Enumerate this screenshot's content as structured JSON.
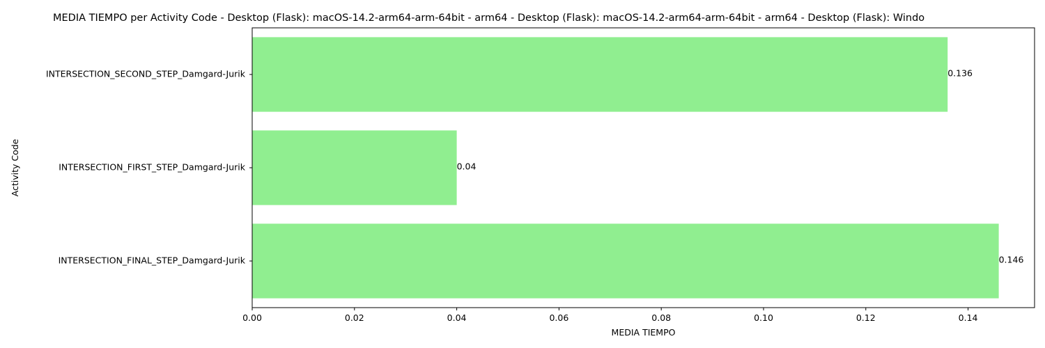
{
  "chart_data": {
    "type": "bar",
    "orientation": "horizontal",
    "title": "MEDIA TIEMPO per Activity Code - Desktop (Flask): macOS-14.2-arm64-arm-64bit - arm64 - Desktop (Flask): macOS-14.2-arm64-arm-64bit - arm64 - Desktop (Flask): Windo",
    "xlabel": "MEDIA TIEMPO",
    "ylabel": "Activity Code",
    "categories": [
      "INTERSECTION_SECOND_STEP_Damgard-Jurik",
      "INTERSECTION_FIRST_STEP_Damgard-Jurik",
      "INTERSECTION_FINAL_STEP_Damgard-Jurik"
    ],
    "values": [
      0.136,
      0.04,
      0.146
    ],
    "value_labels": [
      "0.136",
      "0.04",
      "0.146"
    ],
    "xlim": [
      0,
      0.153
    ],
    "xticks": [
      0,
      0.02,
      0.04,
      0.06,
      0.08,
      0.1,
      0.12,
      0.14
    ],
    "xtick_labels": [
      "0.00",
      "0.02",
      "0.04",
      "0.06",
      "0.08",
      "0.10",
      "0.12",
      "0.14"
    ],
    "bar_color": "#90ee90",
    "grid": false,
    "legend": "none"
  }
}
